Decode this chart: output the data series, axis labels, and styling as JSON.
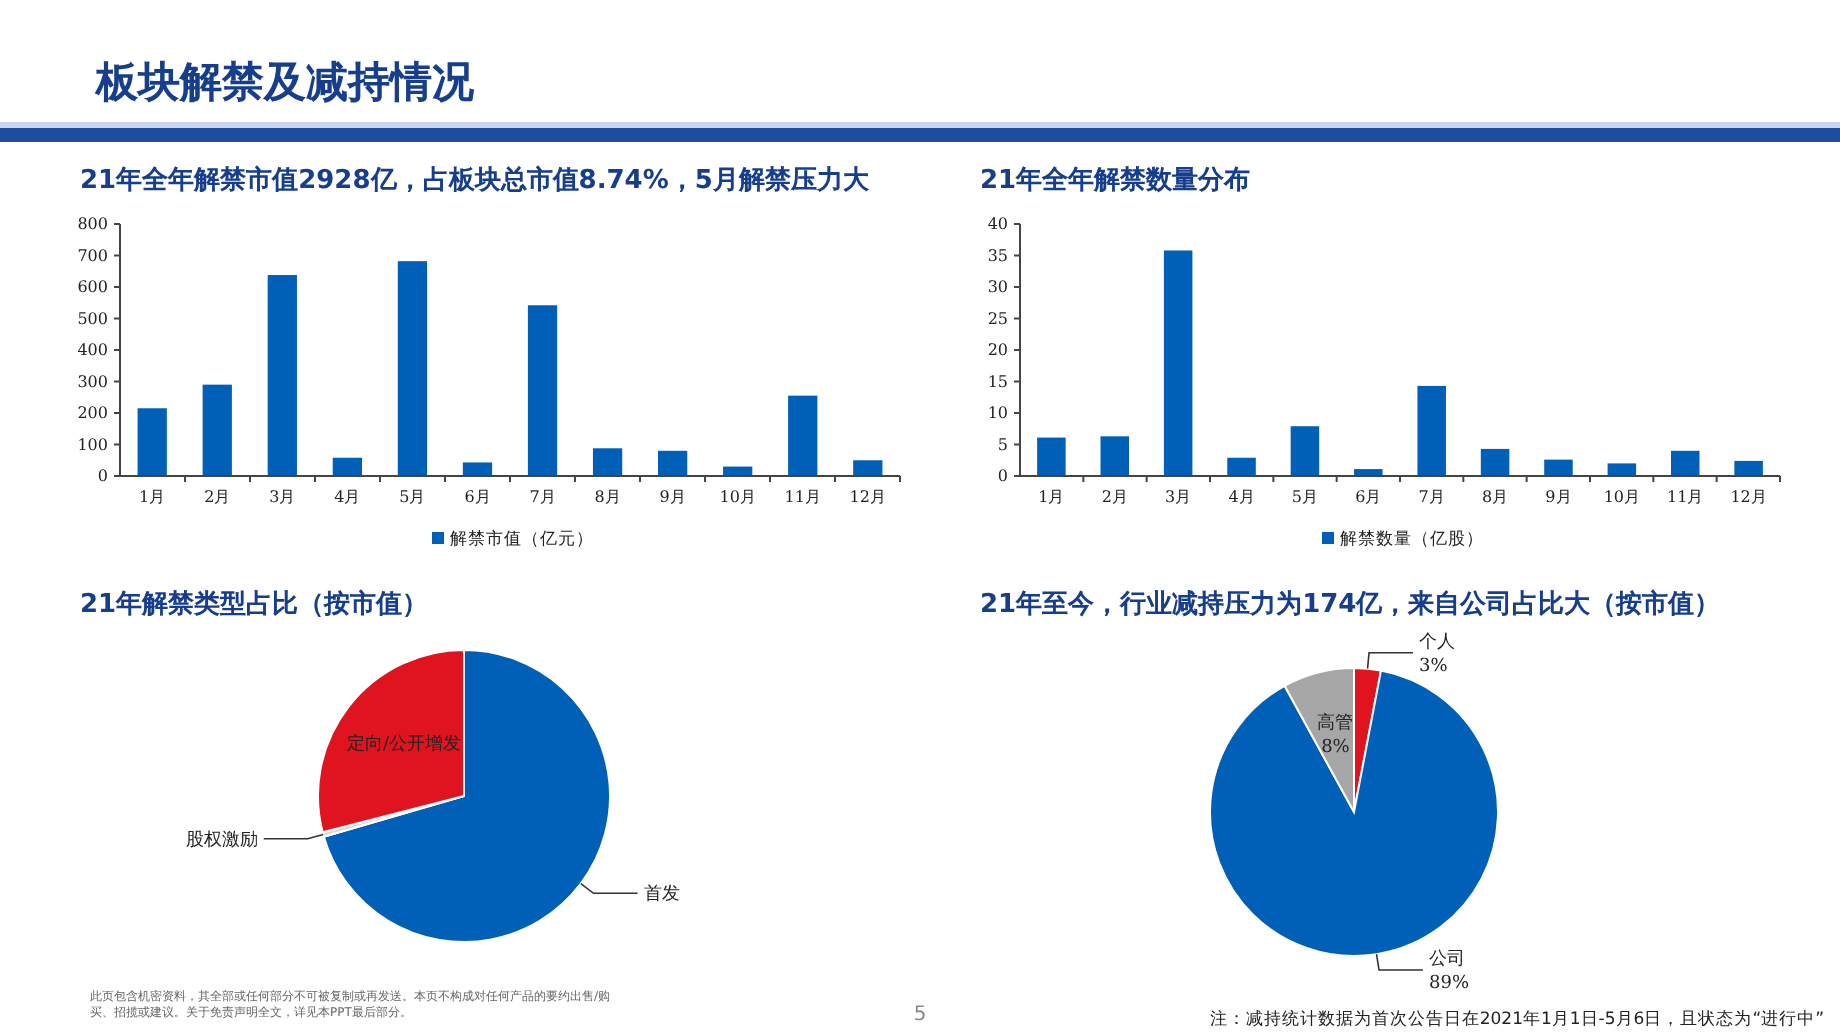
{
  "chart_data": [
    {
      "type": "bar",
      "title": "21年全年解禁市值2928亿，占板块总市值8.74%，5月解禁压力大",
      "categories": [
        "1月",
        "2月",
        "3月",
        "4月",
        "5月",
        "6月",
        "7月",
        "8月",
        "9月",
        "10月",
        "11月",
        "12月"
      ],
      "series": [
        {
          "name": "解禁市值（亿元）",
          "color": "#0060b8",
          "values": [
            215,
            290,
            638,
            58,
            682,
            43,
            542,
            88,
            80,
            30,
            255,
            50
          ]
        }
      ],
      "ylim": [
        0,
        800
      ],
      "yticks": [
        0,
        100,
        200,
        300,
        400,
        500,
        600,
        700,
        800
      ],
      "grid": false,
      "legend": "bottom",
      "annotations": [
        "板块解禁及减持情况",
        "此页包含机密资料，其全部或任何部分不可被复制或再发送。本页不构成对任何产品的要约出售/购买、招揽或建议。关于免责声明全文，详见本PPT最后部分。",
        "5"
      ]
    },
    {
      "type": "bar",
      "title": "21年全年解禁数量分布",
      "categories": [
        "1月",
        "2月",
        "3月",
        "4月",
        "5月",
        "6月",
        "7月",
        "8月",
        "9月",
        "10月",
        "11月",
        "12月"
      ],
      "series": [
        {
          "name": "解禁数量（亿股）",
          "color": "#0060b8",
          "values": [
            6.1,
            6.3,
            35.8,
            2.9,
            7.9,
            1.1,
            14.3,
            4.3,
            2.6,
            2.0,
            4.0,
            2.4
          ]
        }
      ],
      "ylim": [
        0,
        40
      ],
      "yticks": [
        0,
        5,
        10,
        15,
        20,
        25,
        30,
        35,
        40
      ],
      "grid": false,
      "legend": "bottom"
    },
    {
      "type": "pie",
      "title": "21年解禁类型占比（按市值）",
      "categories": [
        "首发",
        "股权激励",
        "定向/公开增发"
      ],
      "values": [
        70.5,
        0.5,
        29
      ],
      "colors": [
        "#0060b8",
        "#d9d9d9",
        "#e0141e"
      ],
      "legend": false
    },
    {
      "type": "pie",
      "title": "21年至今，行业减持压力为174亿，来自公司占比大（按市值）",
      "categories": [
        "个人",
        "公司",
        "高管"
      ],
      "values": [
        3,
        89,
        8
      ],
      "value_labels": [
        "3%",
        "89%",
        "8%"
      ],
      "colors": [
        "#e0141e",
        "#0060b8",
        "#a6a6a6"
      ],
      "legend": false,
      "annotations": [
        "注：减持统计数据为首次公告日在2021年1月1日-5月6日，且状态为“进行中”"
      ]
    }
  ]
}
